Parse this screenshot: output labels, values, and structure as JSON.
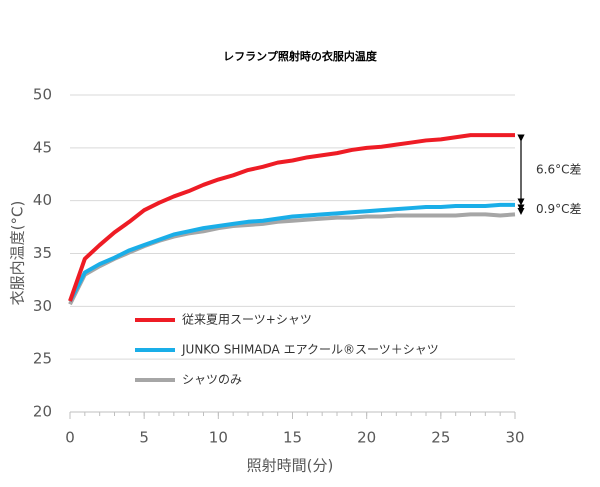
{
  "chart_data": {
    "type": "line",
    "title": "レフランプ照射時の衣服内温度",
    "x_label": "照射時間(分)",
    "y_label": "衣服内温度(°C)",
    "x": [
      0,
      1,
      2,
      3,
      4,
      5,
      6,
      7,
      8,
      9,
      10,
      11,
      12,
      13,
      14,
      15,
      16,
      17,
      18,
      19,
      20,
      21,
      22,
      23,
      24,
      25,
      26,
      27,
      28,
      29,
      30
    ],
    "series": [
      {
        "name": "従来夏用スーツ+シャツ",
        "color": "#ee1c25",
        "values": [
          30.5,
          34.5,
          35.8,
          37.0,
          38.0,
          39.1,
          39.8,
          40.4,
          40.9,
          41.5,
          42.0,
          42.4,
          42.9,
          43.2,
          43.6,
          43.8,
          44.1,
          44.3,
          44.5,
          44.8,
          45.0,
          45.1,
          45.3,
          45.5,
          45.7,
          45.8,
          46.0,
          46.2,
          46.2,
          46.2,
          46.2
        ]
      },
      {
        "name": "JUNKO SHIMADA エアクール®スーツ＋シャツ",
        "color": "#1aaee8",
        "values": [
          30.5,
          33.2,
          34.0,
          34.6,
          35.3,
          35.8,
          36.3,
          36.8,
          37.1,
          37.4,
          37.6,
          37.8,
          38.0,
          38.1,
          38.3,
          38.5,
          38.6,
          38.7,
          38.8,
          38.9,
          39.0,
          39.1,
          39.2,
          39.3,
          39.4,
          39.4,
          39.5,
          39.5,
          39.5,
          39.6,
          39.6
        ]
      },
      {
        "name": "シャツのみ",
        "color": "#a6a6a6",
        "values": [
          30.2,
          33.0,
          33.8,
          34.5,
          35.1,
          35.7,
          36.2,
          36.6,
          36.9,
          37.1,
          37.4,
          37.6,
          37.7,
          37.8,
          38.0,
          38.1,
          38.2,
          38.3,
          38.4,
          38.4,
          38.5,
          38.5,
          38.6,
          38.6,
          38.6,
          38.6,
          38.6,
          38.7,
          38.7,
          38.6,
          38.7
        ]
      }
    ],
    "annotations": [
      "6.6°C差",
      "0.9°C差"
    ],
    "xlim": [
      0,
      30
    ],
    "xticks": [
      0,
      5,
      10,
      15,
      20,
      25,
      30
    ],
    "ylim": [
      20,
      50
    ],
    "yticks": [
      20,
      25,
      30,
      35,
      40,
      45,
      50
    ],
    "grid": true,
    "legend": "lower left"
  }
}
